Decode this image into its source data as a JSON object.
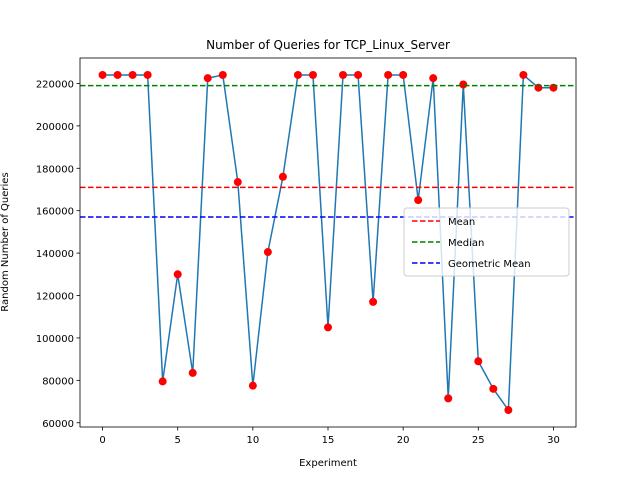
{
  "chart_data": {
    "type": "line",
    "title": "Number of Queries for TCP_Linux_Server",
    "xlabel": "Experiment",
    "ylabel": "Random Number of Queries",
    "xlim": [
      -1.5,
      31.5
    ],
    "ylim": [
      58000,
      232000
    ],
    "x_ticks": [
      0,
      5,
      10,
      15,
      20,
      25,
      30
    ],
    "x_tick_labels": [
      "0",
      "5",
      "10",
      "15",
      "20",
      "25",
      "30"
    ],
    "y_ticks": [
      60000,
      80000,
      100000,
      120000,
      140000,
      160000,
      180000,
      200000,
      220000
    ],
    "y_tick_labels": [
      "60000",
      "80000",
      "100000",
      "120000",
      "140000",
      "160000",
      "180000",
      "200000",
      "220000"
    ],
    "grid": false,
    "legend_position": "center-right",
    "series": [
      {
        "color": "#1f77b4",
        "marker_color": "#ff0000",
        "x": [
          0,
          1,
          2,
          3,
          4,
          5,
          6,
          7,
          8,
          9,
          10,
          11,
          12,
          13,
          14,
          15,
          16,
          17,
          18,
          19,
          20,
          21,
          22,
          23,
          24,
          25,
          26,
          27,
          28,
          29,
          30
        ],
        "y": [
          224000,
          224000,
          224000,
          224000,
          79500,
          130000,
          83500,
          222500,
          224000,
          173500,
          77500,
          140500,
          176000,
          224000,
          224000,
          105000,
          224000,
          224000,
          117000,
          224000,
          224000,
          165000,
          222500,
          71500,
          219500,
          89000,
          76000,
          66000,
          224000,
          218000,
          218000
        ]
      }
    ],
    "reference_lines": [
      {
        "name": "Mean",
        "value": 171000,
        "color": "#ff0000",
        "style": "dashed"
      },
      {
        "name": "Median",
        "value": 219000,
        "color": "#008000",
        "style": "dashed"
      },
      {
        "name": "Geometric Mean",
        "value": 157000,
        "color": "#0000ff",
        "style": "dashed"
      }
    ]
  }
}
